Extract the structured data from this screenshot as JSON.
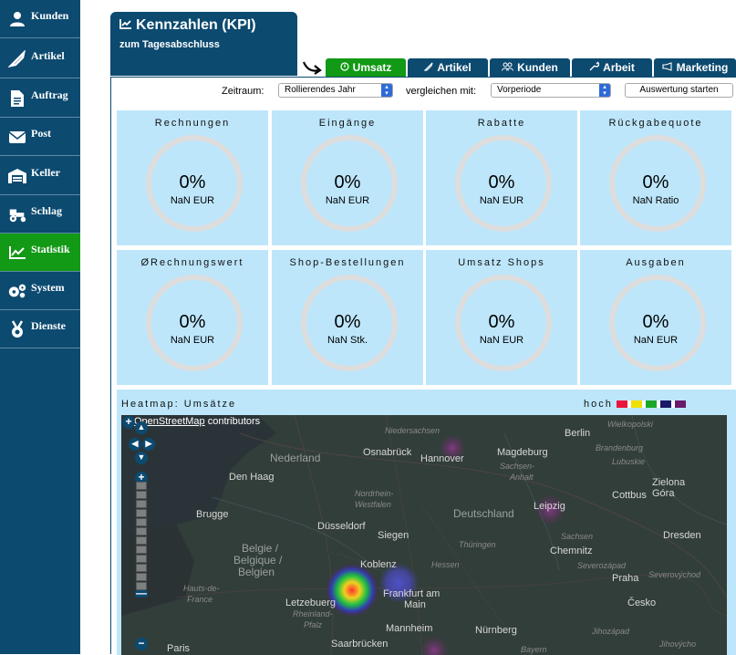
{
  "sidebar": {
    "items": [
      {
        "label": "Kunden",
        "icon": "user-icon",
        "active": false
      },
      {
        "label": "Artikel",
        "icon": "tag-icon",
        "active": false
      },
      {
        "label": "Auftrag",
        "icon": "document-icon",
        "active": false
      },
      {
        "label": "Post",
        "icon": "envelope-icon",
        "active": false
      },
      {
        "label": "Keller",
        "icon": "warehouse-icon",
        "active": false
      },
      {
        "label": "Schlag",
        "icon": "tractor-icon",
        "active": false
      },
      {
        "label": "Statistik",
        "icon": "chart-line-icon",
        "active": true
      },
      {
        "label": "System",
        "icon": "gears-icon",
        "active": false
      },
      {
        "label": "Dienste",
        "icon": "medal-icon",
        "active": false
      }
    ]
  },
  "header": {
    "title": "Kennzahlen (KPI)",
    "subtitle": "zum Tagesabschluss"
  },
  "tabs": [
    {
      "label": "Umsatz",
      "icon": "circle-icon",
      "active": true
    },
    {
      "label": "Artikel",
      "icon": "tag-icon",
      "active": false
    },
    {
      "label": "Kunden",
      "icon": "users-icon",
      "active": false
    },
    {
      "label": "Arbeit",
      "icon": "wrench-icon",
      "active": false
    },
    {
      "label": "Marketing",
      "icon": "megaphone-icon",
      "active": false
    }
  ],
  "toolbar": {
    "zeitraum_label": "Zeitraum:",
    "zeitraum_value": "Rollierendes Jahr",
    "vergleich_label": "vergleichen mit:",
    "vergleich_value": "Vorperiode",
    "start_button": "Auswertung starten"
  },
  "kpis": [
    {
      "title": "Rechnungen",
      "value": "0%",
      "sub": "NaN EUR"
    },
    {
      "title": "Eingänge",
      "value": "0%",
      "sub": "NaN EUR"
    },
    {
      "title": "Rabatte",
      "value": "0%",
      "sub": "NaN EUR"
    },
    {
      "title": "Rückgabequote",
      "value": "0%",
      "sub": "NaN Ratio"
    },
    {
      "title": "ØRechnungswert",
      "value": "0%",
      "sub": "NaN EUR"
    },
    {
      "title": "Shop-Bestellungen",
      "value": "0%",
      "sub": "NaN Stk."
    },
    {
      "title": "Umsatz Shops",
      "value": "0%",
      "sub": "NaN EUR"
    },
    {
      "title": "Ausgaben",
      "value": "0%",
      "sub": "NaN EUR"
    }
  ],
  "heatmap": {
    "title": "Heatmap: Umsätze",
    "legend_label": "hoch",
    "legend_colors": [
      "#e8163d",
      "#ffffff",
      "#f0e000",
      "#ffffff",
      "#1aa82a",
      "#ffffff",
      "#1a1a6a",
      "#ffffff",
      "#6a1a6a"
    ],
    "attribution_link": "OpenStreetMap",
    "attribution_text": " contributors",
    "map_labels": [
      {
        "text": "Berlin",
        "cls": ""
      },
      {
        "text": "Wielkopolski",
        "cls": "sm"
      },
      {
        "text": "Niedersachsen",
        "cls": "sm"
      },
      {
        "text": "Hannover",
        "cls": ""
      },
      {
        "text": "Brandenburg",
        "cls": "sm"
      },
      {
        "text": "Lubuskie",
        "cls": "sm"
      },
      {
        "text": "Osnabrück",
        "cls": ""
      },
      {
        "text": "Magdeburg",
        "cls": ""
      },
      {
        "text": "Nederland",
        "cls": "big"
      },
      {
        "text": "Sachsen-",
        "cls": "sm"
      },
      {
        "text": "Anhalt",
        "cls": "sm"
      },
      {
        "text": "Den Haag",
        "cls": ""
      },
      {
        "text": "Zielona",
        "cls": ""
      },
      {
        "text": "Góra",
        "cls": ""
      },
      {
        "text": "Cottbus",
        "cls": ""
      },
      {
        "text": "Leipzig",
        "cls": ""
      },
      {
        "text": "Nordrhein-",
        "cls": "sm"
      },
      {
        "text": "Westfalen",
        "cls": "sm"
      },
      {
        "text": "Deutschland",
        "cls": "big"
      },
      {
        "text": "Brugge",
        "cls": ""
      },
      {
        "text": "Düsseldorf",
        "cls": ""
      },
      {
        "text": "Siegen",
        "cls": ""
      },
      {
        "text": "Sachsen",
        "cls": "sm"
      },
      {
        "text": "Dresden",
        "cls": ""
      },
      {
        "text": "Thüringen",
        "cls": "sm"
      },
      {
        "text": "Belgie /",
        "cls": "big"
      },
      {
        "text": "Belgique /",
        "cls": "big"
      },
      {
        "text": "Belgien",
        "cls": "big"
      },
      {
        "text": "Hessen",
        "cls": "sm"
      },
      {
        "text": "Chemnitz",
        "cls": ""
      },
      {
        "text": "Koblenz",
        "cls": ""
      },
      {
        "text": "Severozápad",
        "cls": "sm"
      },
      {
        "text": "Praha",
        "cls": ""
      },
      {
        "text": "Severovýchod",
        "cls": "sm"
      },
      {
        "text": "Hauts-de-",
        "cls": "sm"
      },
      {
        "text": "France",
        "cls": "sm"
      },
      {
        "text": "Frankfurt am",
        "cls": ""
      },
      {
        "text": "Main",
        "cls": ""
      },
      {
        "text": "Letzebuerg",
        "cls": ""
      },
      {
        "text": "Rheinland-",
        "cls": "sm"
      },
      {
        "text": "Pfalz",
        "cls": "sm"
      },
      {
        "text": "Česko",
        "cls": ""
      },
      {
        "text": "Mannheim",
        "cls": ""
      },
      {
        "text": "Jihozápad",
        "cls": "sm"
      },
      {
        "text": "Saarbrücken",
        "cls": ""
      },
      {
        "text": "Nürnberg",
        "cls": ""
      },
      {
        "text": "Paris",
        "cls": ""
      },
      {
        "text": "Jihovýcho",
        "cls": "sm"
      },
      {
        "text": "Bayern",
        "cls": "sm"
      }
    ]
  }
}
